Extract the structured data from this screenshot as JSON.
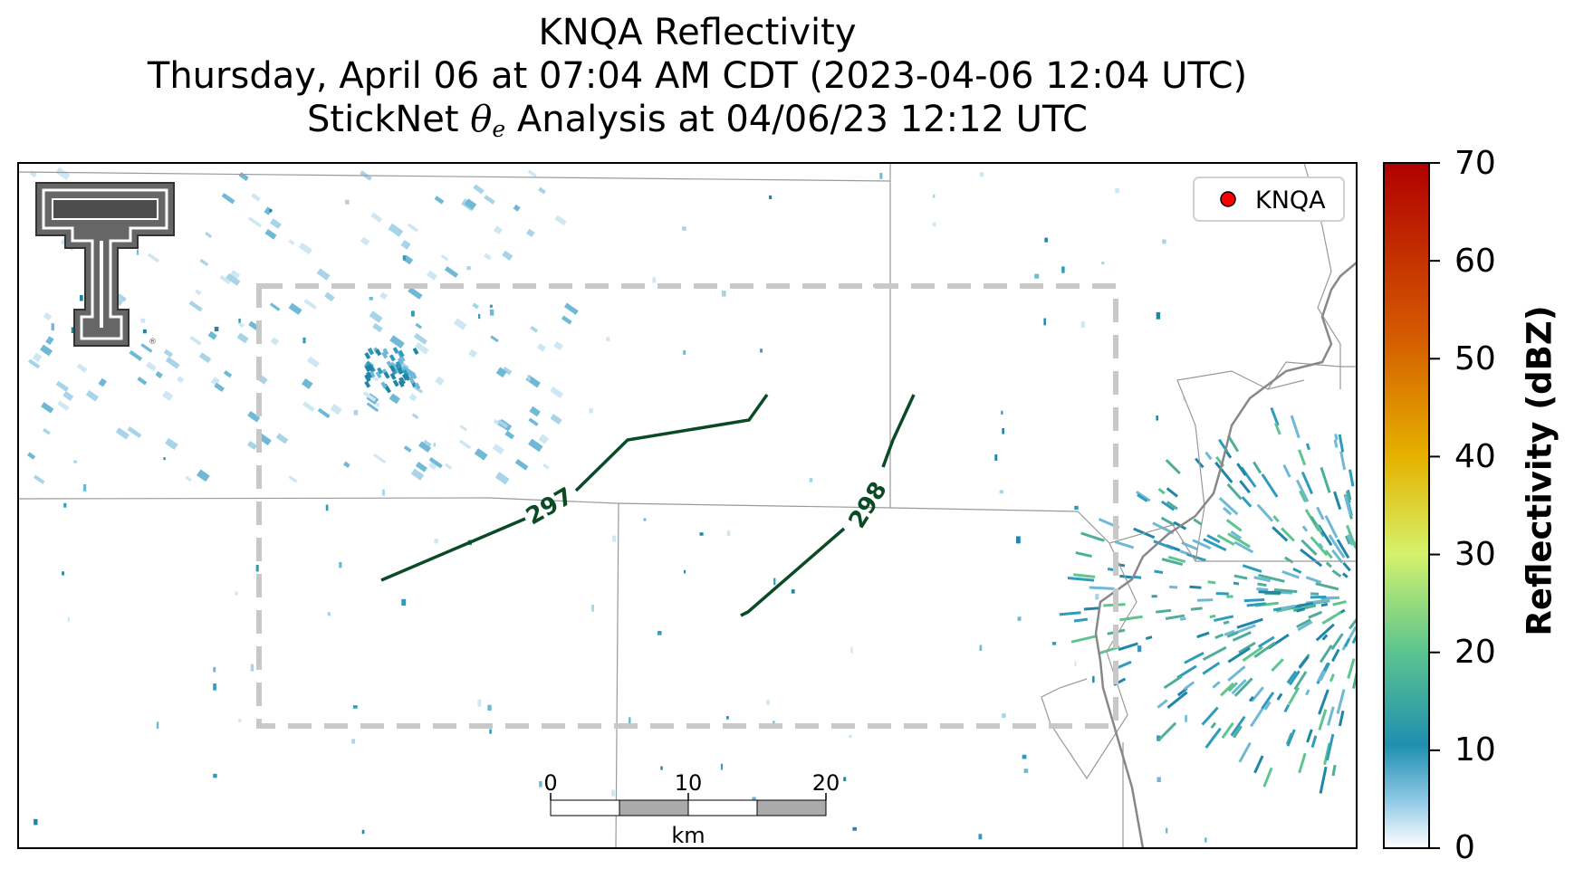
{
  "title": {
    "line1": "KNQA Reflectivity",
    "line2": "Thursday, April 06 at 07:04 AM CDT (2023-04-06 12:04 UTC)",
    "line3_prefix": "StickNet ",
    "line3_symbol": "θ",
    "line3_subscript": "e",
    "line3_suffix": " Analysis at 04/06/23 12:12 UTC"
  },
  "legend": {
    "marker_color": "#ff0000",
    "label": "KNQA"
  },
  "contours": [
    {
      "label": "297",
      "color": "#0b4a26"
    },
    {
      "label": "298",
      "color": "#0b4a26"
    }
  ],
  "scale_bar": {
    "ticks": [
      "0",
      "10",
      "20"
    ],
    "unit": "km"
  },
  "colorbar": {
    "label": "Reflectivity (dBZ)",
    "min": 0,
    "max": 70,
    "ticks": [
      "0",
      "10",
      "20",
      "30",
      "40",
      "50",
      "60",
      "70"
    ],
    "colors": [
      "#ffffff",
      "#8fc9e6",
      "#1f8fb0",
      "#5ec58f",
      "#d4f26a",
      "#e6b200",
      "#d45a00",
      "#b00000"
    ]
  },
  "analysis_box_color": "#c8c8c8",
  "logo": "texas-tech-double-t-logo"
}
